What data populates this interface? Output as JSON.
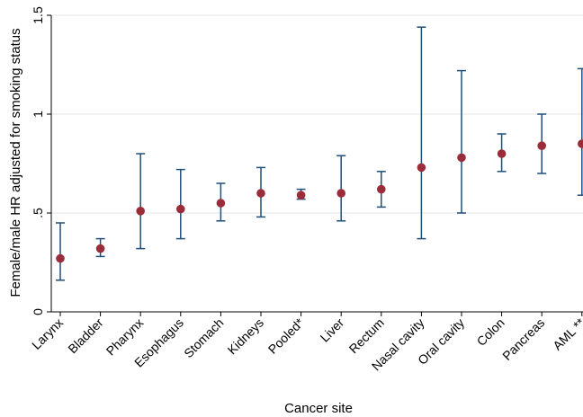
{
  "chart_data": {
    "type": "scatter",
    "xlabel": "Cancer site",
    "ylabel": "Female/male HR adjusted for smoking status",
    "ylim": [
      0,
      1.5
    ],
    "yticks": [
      {
        "value": 0,
        "label": "0"
      },
      {
        "value": 0.5,
        "label": ".5"
      },
      {
        "value": 1,
        "label": "1"
      },
      {
        "value": 1.5,
        "label": "1.5"
      }
    ],
    "grid": "horizontal",
    "categories": [
      "Larynx",
      "Bladder",
      "Pharynx",
      "Esophagus",
      "Stomach",
      "Kidneys",
      "Pooled*",
      "Liver",
      "Rectum",
      "Nasal cavity",
      "Oral cavity",
      "Colon",
      "Pancreas",
      "AML **"
    ],
    "values": [
      0.27,
      0.32,
      0.51,
      0.52,
      0.55,
      0.6,
      0.59,
      0.6,
      0.62,
      0.73,
      0.78,
      0.8,
      0.84,
      0.85
    ],
    "lower": [
      0.16,
      0.28,
      0.32,
      0.37,
      0.46,
      0.48,
      0.57,
      0.46,
      0.53,
      0.37,
      0.5,
      0.71,
      0.7,
      0.59
    ],
    "upper": [
      0.45,
      0.37,
      0.8,
      0.72,
      0.65,
      0.73,
      0.62,
      0.79,
      0.71,
      1.44,
      1.22,
      0.9,
      1.0,
      1.23
    ],
    "point_color": "#9b2d3a",
    "errorbar_color": "#1f4e79"
  }
}
